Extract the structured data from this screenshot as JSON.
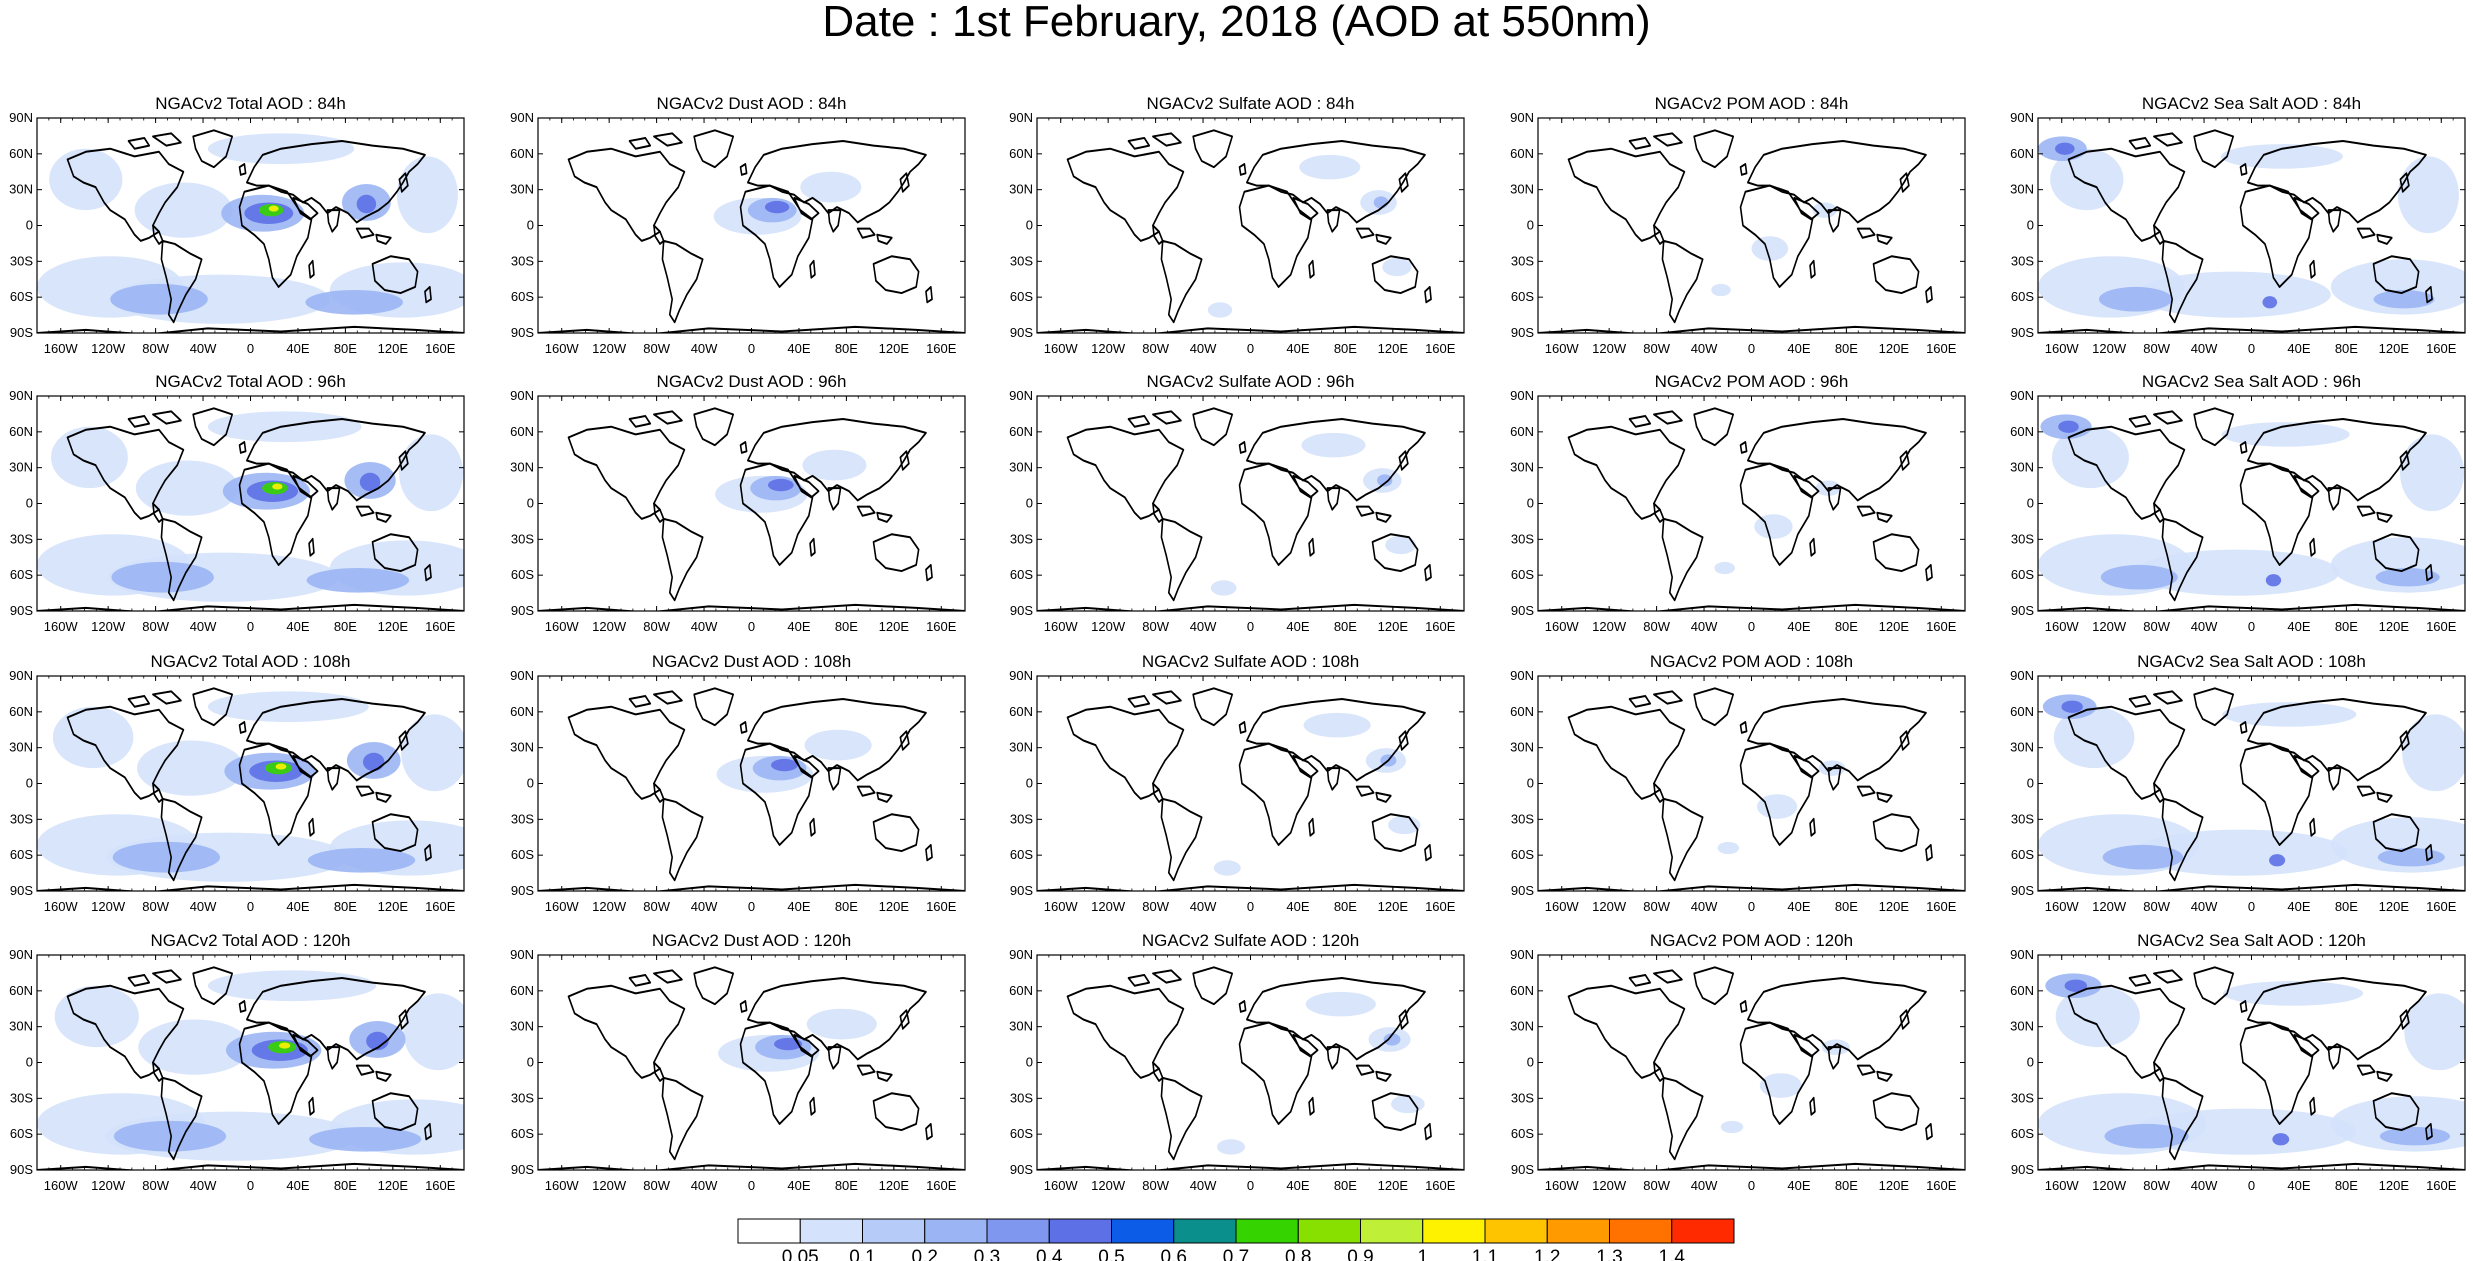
{
  "title": "Date : 1st February, 2018 (AOD at 550nm)",
  "lat_ticks": [
    "90N",
    "60N",
    "30N",
    "0",
    "30S",
    "60S",
    "90S"
  ],
  "lon_ticks": [
    "160W",
    "120W",
    "80W",
    "40W",
    "0",
    "40E",
    "80E",
    "120E",
    "160E"
  ],
  "colorbar": {
    "labels": [
      "0.05",
      "0.1",
      "0.2",
      "0.3",
      "0.4",
      "0.5",
      "0.6",
      "0.7",
      "0.8",
      "0.9",
      "1",
      "1.1",
      "1.2",
      "1.3",
      "1.4"
    ],
    "colors": [
      "#ffffff",
      "#d4e2fb",
      "#b6cbf8",
      "#9bb5f4",
      "#7f97ee",
      "#5e70e6",
      "#0d5ce8",
      "#0a8f8c",
      "#35d400",
      "#88e000",
      "#bfef37",
      "#fff200",
      "#ffc400",
      "#ff9a00",
      "#ff7200",
      "#ff2a00"
    ]
  },
  "panel_titles": [
    [
      "NGACv2 Total AOD : 84h",
      "NGACv2 Dust AOD : 84h",
      "NGACv2 Sulfate AOD : 84h",
      "NGACv2 POM AOD : 84h",
      "NGACv2 Sea Salt AOD : 84h"
    ],
    [
      "NGACv2 Total AOD : 96h",
      "NGACv2 Dust AOD : 96h",
      "NGACv2 Sulfate AOD : 96h",
      "NGACv2 POM AOD : 96h",
      "NGACv2 Sea Salt AOD : 96h"
    ],
    [
      "NGACv2 Total AOD : 108h",
      "NGACv2 Dust AOD : 108h",
      "NGACv2 Sulfate AOD : 108h",
      "NGACv2 POM AOD : 108h",
      "NGACv2 Sea Salt AOD : 108h"
    ],
    [
      "NGACv2 Total AOD : 120h",
      "NGACv2 Dust AOD : 120h",
      "NGACv2 Sulfate AOD : 120h",
      "NGACv2 POM AOD : 120h",
      "NGACv2 Sea Salt  AOD : 120h"
    ]
  ],
  "map_style": {
    "coast_color": "#000000",
    "low_aod_color": "#d4e2fb",
    "mid_aod_color": "#9bb5f4",
    "high_aod_color": "#5e70e6",
    "peak_aod_color": "#35d400",
    "max_aod_color": "#fff200"
  }
}
